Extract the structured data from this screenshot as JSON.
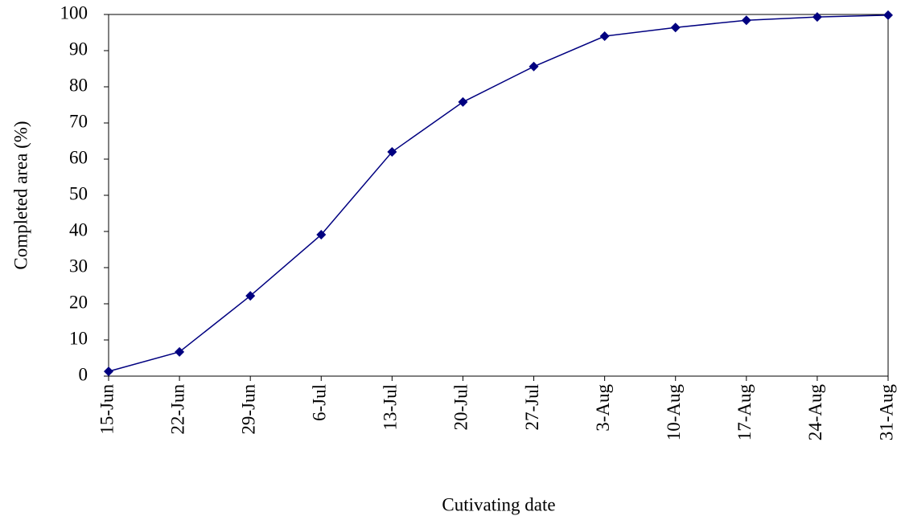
{
  "chart_data": {
    "type": "line",
    "x_label": "Cutivating date",
    "y_label": "Completed area (%)",
    "categories": [
      "15-Jun",
      "22-Jun",
      "29-Jun",
      "6-Jul",
      "13-Jul",
      "20-Jul",
      "27-Jul",
      "3-Aug",
      "10-Aug",
      "17-Aug",
      "24-Aug",
      "31-Aug"
    ],
    "series": [
      {
        "color": "#000080",
        "values": [
          1.3,
          6.7,
          22.2,
          39.1,
          62,
          75.8,
          85.6,
          94,
          96.4,
          98.4,
          99.3,
          99.8
        ]
      }
    ],
    "ylim": [
      0,
      100
    ],
    "yticks": [
      0,
      10,
      20,
      30,
      40,
      50,
      60,
      70,
      80,
      90,
      100
    ],
    "grid": false
  }
}
